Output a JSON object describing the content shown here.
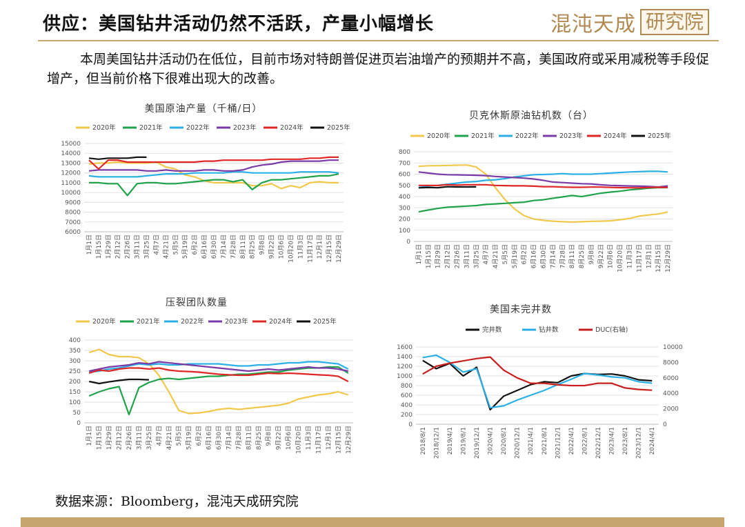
{
  "title": "供应：美国钻井活动仍然不活跃，产量小幅增长",
  "brand": {
    "name": "混沌天成",
    "tag": "研究院"
  },
  "intro": "本周美国钻井活动仍在低位，目前市场对特朗普促进页岩油增产的预期并不高，美国政府或采用减税等手段促增产，但当前价格下很难出现大的改善。",
  "source": "数据来源：Bloomberg，混沌天成研究院",
  "weeks": [
    "1月1日",
    "1月15日",
    "1月29日",
    "2月12日",
    "2月26日",
    "3月11日",
    "3月25日",
    "4月7日",
    "4月21日",
    "5月5日",
    "5月19日",
    "6月2日",
    "6月16日",
    "6月30日",
    "7月14日",
    "7月28日",
    "8月11日",
    "8月25日",
    "9月8日",
    "9月22日",
    "10月6日",
    "10月20日",
    "11月3日",
    "11月17日",
    "12月1日",
    "12月15日",
    "12月29日"
  ],
  "chart_data": [
    {
      "type": "line",
      "title": "美国原油产量（千桶/日）",
      "ylim": [
        6000,
        15000
      ],
      "yticks": [
        6000,
        7000,
        8000,
        9000,
        10000,
        11000,
        12000,
        13000,
        14000,
        15000
      ],
      "series": [
        {
          "name": "2020年",
          "color": "#f2c84b",
          "values": [
            12900,
            13000,
            13000,
            13100,
            13000,
            13000,
            13000,
            13100,
            12600,
            12400,
            11800,
            11600,
            11200,
            11000,
            11000,
            11000,
            11000,
            10700,
            10700,
            10900,
            10400,
            10700,
            10500,
            11000,
            11100,
            11000,
            11000
          ]
        },
        {
          "name": "2021年",
          "color": "#1fa34a",
          "values": [
            11000,
            11000,
            10900,
            10900,
            9700,
            10900,
            11000,
            11000,
            10900,
            10900,
            11000,
            11100,
            11200,
            11300,
            11300,
            11100,
            11300,
            10300,
            11000,
            11300,
            11300,
            11400,
            11500,
            11600,
            11700,
            11700,
            11900
          ]
        },
        {
          "name": "2022年",
          "color": "#2ab0e6",
          "values": [
            11700,
            11600,
            11600,
            11600,
            11600,
            11600,
            11700,
            11800,
            11900,
            11900,
            11900,
            12000,
            12000,
            12000,
            12000,
            12100,
            12100,
            12000,
            12000,
            12000,
            12000,
            12000,
            12100,
            12100,
            12100,
            12100,
            12000
          ]
        },
        {
          "name": "2023年",
          "color": "#7a3aa8",
          "values": [
            12200,
            12300,
            12300,
            12300,
            12300,
            12300,
            12200,
            12200,
            12300,
            12200,
            12200,
            12200,
            12300,
            12300,
            12200,
            12200,
            12300,
            12600,
            12800,
            12900,
            13100,
            13200,
            13200,
            13200,
            13200,
            13300,
            13300
          ]
        },
        {
          "name": "2024年",
          "color": "#e02525",
          "values": [
            13300,
            12400,
            13300,
            13300,
            13100,
            13100,
            13100,
            13100,
            13100,
            13100,
            13100,
            13100,
            13200,
            13200,
            13300,
            13300,
            13300,
            13300,
            13300,
            13400,
            13400,
            13400,
            13400,
            13500,
            13500,
            13600,
            13600
          ]
        },
        {
          "name": "2025年",
          "color": "#111111",
          "values": [
            13500,
            13400,
            13500,
            13500,
            13500,
            13600,
            13600
          ]
        }
      ]
    },
    {
      "type": "line",
      "title": "贝克休斯原油钻机数（台）",
      "ylim": [
        0,
        800
      ],
      "yticks": [
        0,
        100,
        200,
        300,
        400,
        500,
        600,
        700,
        800
      ],
      "series": [
        {
          "name": "2020年",
          "color": "#f2c84b",
          "values": [
            670,
            675,
            676,
            678,
            680,
            682,
            664,
            600,
            480,
            374,
            290,
            230,
            200,
            188,
            181,
            176,
            173,
            176,
            179,
            181,
            184,
            193,
            205,
            226,
            236,
            245,
            262
          ]
        },
        {
          "name": "2021年",
          "color": "#1fa34a",
          "values": [
            264,
            280,
            295,
            305,
            310,
            315,
            320,
            330,
            335,
            340,
            345,
            350,
            365,
            372,
            385,
            397,
            410,
            400,
            415,
            430,
            440,
            448,
            460,
            467,
            475,
            480,
            480
          ]
        },
        {
          "name": "2022年",
          "color": "#2ab0e6",
          "values": [
            480,
            495,
            500,
            510,
            520,
            530,
            535,
            545,
            550,
            560,
            575,
            585,
            595,
            597,
            600,
            605,
            600,
            600,
            600,
            605,
            610,
            615,
            620,
            622,
            625,
            625,
            620
          ]
        },
        {
          "name": "2023年",
          "color": "#7a3aa8",
          "values": [
            620,
            610,
            600,
            595,
            594,
            592,
            590,
            587,
            580,
            575,
            570,
            565,
            557,
            545,
            530,
            525,
            520,
            515,
            513,
            505,
            500,
            498,
            495,
            493,
            490,
            485,
            495
          ]
        },
        {
          "name": "2024年",
          "color": "#e02525",
          "values": [
            500,
            499,
            499,
            506,
            503,
            506,
            506,
            506,
            500,
            498,
            496,
            496,
            493,
            488,
            488,
            485,
            483,
            483,
            485,
            485,
            482,
            480,
            479,
            478,
            481,
            483,
            482
          ]
        },
        {
          "name": "2025年",
          "color": "#111111",
          "values": [
            478,
            481,
            479,
            488,
            486,
            486,
            487
          ]
        }
      ]
    },
    {
      "type": "line",
      "title": "压裂团队数量",
      "ylim": [
        0,
        400
      ],
      "yticks": [
        0,
        50,
        100,
        150,
        200,
        250,
        300,
        350,
        400
      ],
      "series": [
        {
          "name": "2020年",
          "color": "#f2c84b",
          "values": [
            340,
            355,
            330,
            320,
            320,
            315,
            285,
            230,
            150,
            60,
            45,
            48,
            55,
            65,
            70,
            65,
            70,
            75,
            80,
            85,
            95,
            115,
            125,
            135,
            140,
            150,
            135
          ]
        },
        {
          "name": "2021年",
          "color": "#1fa34a",
          "values": [
            130,
            150,
            165,
            175,
            40,
            170,
            195,
            210,
            215,
            210,
            215,
            220,
            225,
            225,
            230,
            235,
            235,
            240,
            245,
            245,
            255,
            260,
            265,
            265,
            270,
            270,
            240
          ]
        },
        {
          "name": "2022年",
          "color": "#2ab0e6",
          "values": [
            245,
            250,
            260,
            265,
            275,
            285,
            280,
            285,
            280,
            280,
            285,
            285,
            285,
            285,
            280,
            275,
            275,
            280,
            280,
            285,
            290,
            290,
            295,
            295,
            290,
            285,
            260
          ]
        },
        {
          "name": "2023年",
          "color": "#7a3aa8",
          "values": [
            250,
            260,
            270,
            275,
            280,
            290,
            285,
            295,
            290,
            285,
            280,
            275,
            270,
            265,
            260,
            255,
            250,
            255,
            260,
            255,
            260,
            265,
            270,
            265,
            265,
            260,
            250
          ]
        },
        {
          "name": "2024年",
          "color": "#e02525",
          "values": [
            240,
            255,
            250,
            260,
            265,
            265,
            260,
            265,
            255,
            250,
            248,
            245,
            240,
            235,
            232,
            230,
            230,
            235,
            240,
            238,
            240,
            238,
            235,
            232,
            230,
            225,
            200
          ]
        },
        {
          "name": "2025年",
          "color": "#111111",
          "values": [
            200,
            190,
            198,
            205,
            210,
            210,
            208
          ]
        }
      ]
    },
    {
      "type": "line",
      "title": "美国未完井数",
      "x": [
        "2018/8/1",
        "2018/12/1",
        "2019/4/1",
        "2019/8/1",
        "2019/12/1",
        "2020/4/1",
        "2020/8/1",
        "2020/12/1",
        "2021/4/1",
        "2021/8/1",
        "2021/12/1",
        "2022/4/1",
        "2022/8/1",
        "2022/12/1",
        "2023/4/1",
        "2023/8/1",
        "2023/12/1",
        "2024/4/1"
      ],
      "ylim": [
        0,
        1600
      ],
      "yticks": [
        0,
        200,
        400,
        600,
        800,
        1000,
        1200,
        1400,
        1600
      ],
      "y2lim": [
        0,
        10000
      ],
      "y2ticks": [
        0,
        2000,
        4000,
        6000,
        8000,
        10000
      ],
      "series": [
        {
          "name": "完井数",
          "color": "#111111",
          "axis": "left",
          "values": [
            1320,
            1150,
            1260,
            1000,
            1180,
            300,
            580,
            700,
            820,
            880,
            860,
            1000,
            1050,
            1030,
            1040,
            1000,
            920,
            900
          ]
        },
        {
          "name": "钻井数",
          "color": "#2ab0e6",
          "axis": "left",
          "values": [
            1380,
            1430,
            1280,
            1080,
            1150,
            340,
            380,
            500,
            600,
            700,
            820,
            930,
            1050,
            1020,
            980,
            960,
            880,
            850
          ]
        },
        {
          "name": "DUC(右轴)",
          "color": "#c81e1e",
          "axis": "right",
          "values": [
            6500,
            7500,
            7900,
            8200,
            8500,
            8700,
            7000,
            6000,
            5300,
            5300,
            5100,
            5000,
            5000,
            5300,
            5300,
            4700,
            4500,
            4400
          ]
        }
      ]
    }
  ]
}
